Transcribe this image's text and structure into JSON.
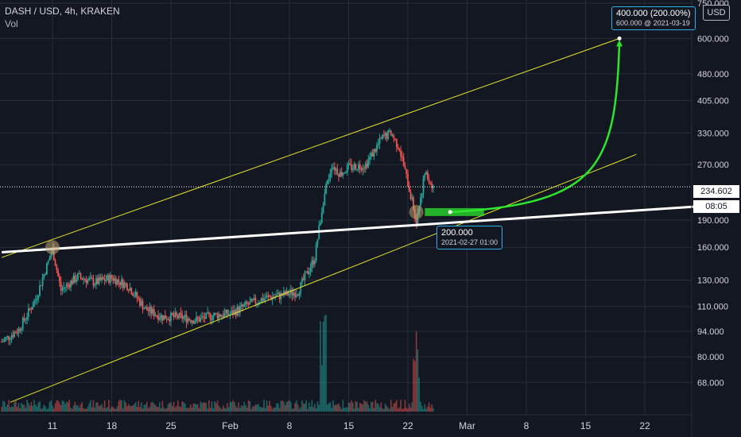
{
  "header": {
    "symbol_line": "DASH / USD, 4h, KRAKEN",
    "indicator": "Vol"
  },
  "currency_button": "USD",
  "last_price_tag": "234.602",
  "countdown_tag": "08:05",
  "annotations": {
    "target": {
      "line1": "400.000 (200.00%)",
      "line2": "600.000 @ 2021-03-19"
    },
    "entry": {
      "line1": "200.000",
      "line2": "2021-02-27 01:00"
    }
  },
  "colors": {
    "background": "#131722",
    "grid": "#2a2e39",
    "up_candle": "#26a69a",
    "down_candle": "#ef5350",
    "channel": "#e6e62a",
    "trendline": "#ffffff",
    "projection": "#2ee62e",
    "callout_border": "#2ab0e6"
  },
  "chart_data": {
    "type": "candlestick",
    "symbol": "DASH / USD",
    "timeframe": "4h",
    "exchange": "KRAKEN",
    "y_scale": "log",
    "ylim": [
      56,
      750
    ],
    "y_ticks": [
      "750.000",
      "600.000",
      "480.000",
      "405.000",
      "330.000",
      "270.000",
      "190.000",
      "160.000",
      "130.000",
      "110.000",
      "94.000",
      "80.000",
      "68.000"
    ],
    "y_tick_values": [
      750,
      600,
      480,
      405,
      330,
      270,
      190,
      160,
      130,
      110,
      94,
      80,
      68
    ],
    "x_ticks": [
      "11",
      "18",
      "25",
      "Feb",
      "8",
      "15",
      "22",
      "Mar",
      "8",
      "15",
      "22"
    ],
    "x_tick_dates": [
      "2021-01-11",
      "2021-01-18",
      "2021-01-25",
      "2021-02-01",
      "2021-02-08",
      "2021-02-15",
      "2021-02-22",
      "2021-03-01",
      "2021-03-08",
      "2021-03-15",
      "2021-03-22"
    ],
    "last_price": 234.602,
    "price_path": [
      [
        "2021-01-05",
        88
      ],
      [
        "2021-01-07",
        95
      ],
      [
        "2021-01-09",
        115
      ],
      [
        "2021-01-10",
        135
      ],
      [
        "2021-01-11",
        158
      ],
      [
        "2021-01-12",
        122
      ],
      [
        "2021-01-14",
        133
      ],
      [
        "2021-01-16",
        128
      ],
      [
        "2021-01-18",
        132
      ],
      [
        "2021-01-20",
        125
      ],
      [
        "2021-01-22",
        108
      ],
      [
        "2021-01-24",
        103
      ],
      [
        "2021-01-26",
        103
      ],
      [
        "2021-01-28",
        101
      ],
      [
        "2021-01-30",
        104
      ],
      [
        "2021-02-01",
        105
      ],
      [
        "2021-02-03",
        111
      ],
      [
        "2021-02-05",
        116
      ],
      [
        "2021-02-07",
        118
      ],
      [
        "2021-02-09",
        121
      ],
      [
        "2021-02-11",
        150
      ],
      [
        "2021-02-12",
        215
      ],
      [
        "2021-02-13",
        270
      ],
      [
        "2021-02-14",
        255
      ],
      [
        "2021-02-15",
        265
      ],
      [
        "2021-02-17",
        270
      ],
      [
        "2021-02-19",
        320
      ],
      [
        "2021-02-20",
        330
      ],
      [
        "2021-02-21",
        300
      ],
      [
        "2021-02-22",
        240
      ],
      [
        "2021-02-23",
        190
      ],
      [
        "2021-02-24",
        255
      ],
      [
        "2021-02-25",
        234.6
      ]
    ],
    "volume_spikes": [
      [
        "2021-02-12",
        "high"
      ],
      [
        "2021-02-23",
        "high"
      ]
    ],
    "drawings": {
      "trendline": {
        "from": [
          "2021-01-05",
          155
        ],
        "to": [
          "2021-03-28",
          207
        ]
      },
      "channel_upper": {
        "from": [
          "2021-01-05",
          150
        ],
        "to": [
          "2021-03-19",
          600
        ]
      },
      "channel_lower": {
        "from": [
          "2021-01-06",
          60
        ],
        "to": [
          "2021-03-21",
          288
        ]
      },
      "entry_zone": {
        "from": [
          "2021-02-24",
          205
        ],
        "to": [
          "2021-03-03",
          195
        ]
      },
      "projection": {
        "from": [
          "2021-02-27",
          200
        ],
        "to": [
          "2021-03-19",
          600
        ]
      },
      "circles": [
        [
          "2021-01-11",
          160
        ],
        [
          "2021-02-23",
          200
        ]
      ]
    }
  }
}
